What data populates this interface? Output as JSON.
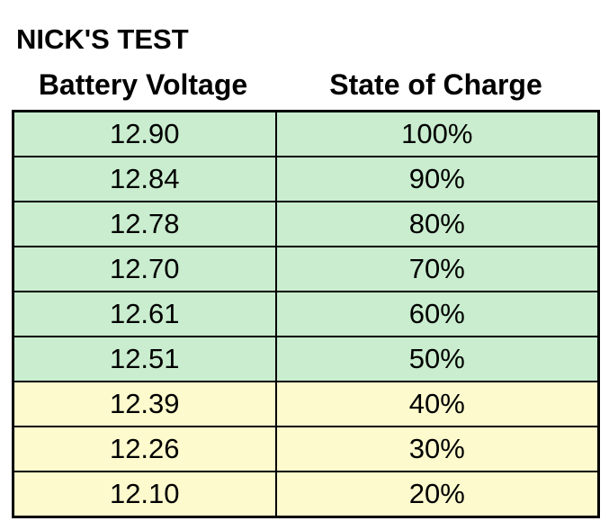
{
  "page": {
    "title": "NICK'S TEST"
  },
  "table": {
    "columns": [
      {
        "label": "Battery Voltage"
      },
      {
        "label": "State of Charge"
      }
    ],
    "rows": [
      {
        "voltage": "12.90",
        "soc": "100%",
        "zone": "green",
        "zone_class": "zone-green"
      },
      {
        "voltage": "12.84",
        "soc": "90%",
        "zone": "green",
        "zone_class": "zone-green"
      },
      {
        "voltage": "12.78",
        "soc": "80%",
        "zone": "green",
        "zone_class": "zone-green"
      },
      {
        "voltage": "12.70",
        "soc": "70%",
        "zone": "green",
        "zone_class": "zone-green"
      },
      {
        "voltage": "12.61",
        "soc": "60%",
        "zone": "green",
        "zone_class": "zone-green"
      },
      {
        "voltage": "12.51",
        "soc": "50%",
        "zone": "green",
        "zone_class": "zone-green"
      },
      {
        "voltage": "12.39",
        "soc": "40%",
        "zone": "yellow",
        "zone_class": "zone-yellow"
      },
      {
        "voltage": "12.26",
        "soc": "30%",
        "zone": "yellow",
        "zone_class": "zone-yellow"
      },
      {
        "voltage": "12.10",
        "soc": "20%",
        "zone": "yellow",
        "zone_class": "zone-yellow"
      }
    ]
  },
  "colors": {
    "green_fill": "#c9edce",
    "yellow_fill": "#fdfacd",
    "border": "#000000",
    "text": "#000000",
    "background": "#ffffff"
  }
}
